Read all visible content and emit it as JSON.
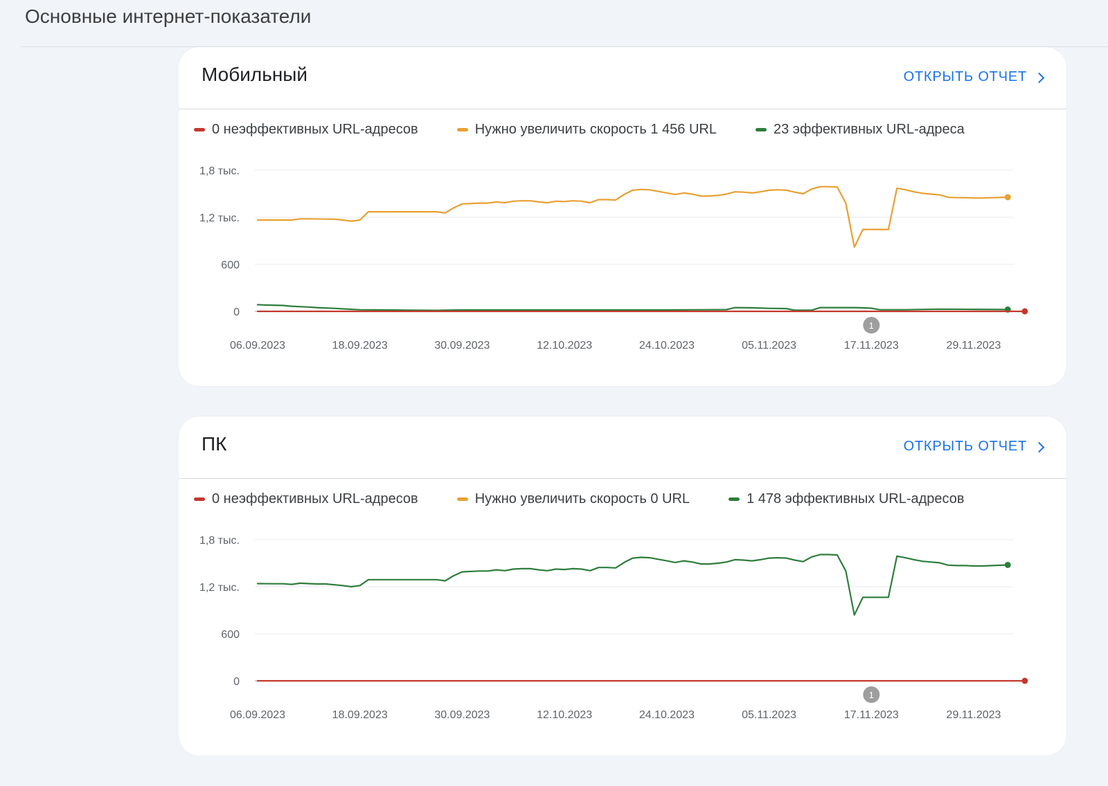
{
  "page": {
    "title": "Основные интернет-показатели"
  },
  "colors": {
    "poor": "#c5372c",
    "needs_improvement": "#e8a032",
    "good": "#2e7d3b",
    "link": "#1a73e8",
    "grid": "#e8eaed",
    "annotation": "#9e9e9e"
  },
  "cards": [
    {
      "title": "Мобильный",
      "open_report": "Открыть отчет",
      "legend": [
        {
          "label": "0 неэффективных URL-адресов",
          "color": "#c5372c"
        },
        {
          "label": "Нужно увеличить скорость 1 456 URL",
          "color": "#e8a032"
        },
        {
          "label": "23 эффективных URL-адреса",
          "color": "#2e7d3b"
        }
      ],
      "annotation_label": "1",
      "chart_data": {
        "type": "line",
        "x_ticks": [
          "06.09.2023",
          "18.09.2023",
          "30.09.2023",
          "12.10.2023",
          "24.10.2023",
          "05.11.2023",
          "17.11.2023",
          "29.11.2023"
        ],
        "y_ticks": [
          "1,8 тыс.",
          "1,2 тыс.",
          "600",
          "0"
        ],
        "y_tick_values": [
          1800,
          1200,
          600,
          0
        ],
        "ylim": [
          0,
          1800
        ],
        "x_range": [
          "06.09.2023",
          "05.12.2023"
        ],
        "annotation": {
          "label": "1",
          "date": "17.11.2023"
        },
        "series": [
          {
            "name": "0 неэффективных URL-адресов",
            "color": "#c5372c",
            "values": [
              [
                0,
                0
              ],
              [
                90,
                0
              ]
            ],
            "end_marker": true
          },
          {
            "name": "Нужно увеличить скорость 1 456 URL",
            "color": "#e8a032",
            "values": [
              [
                0,
                1165
              ],
              [
                2,
                1165
              ],
              [
                4,
                1165
              ],
              [
                5,
                1180
              ],
              [
                6,
                1180
              ],
              [
                9,
                1175
              ],
              [
                10,
                1165
              ],
              [
                11,
                1150
              ],
              [
                12,
                1165
              ],
              [
                13,
                1270
              ],
              [
                16,
                1270
              ],
              [
                21,
                1270
              ],
              [
                22,
                1255
              ],
              [
                23,
                1320
              ],
              [
                24,
                1370
              ],
              [
                26,
                1380
              ],
              [
                27,
                1380
              ],
              [
                28,
                1395
              ],
              [
                29,
                1385
              ],
              [
                30,
                1405
              ],
              [
                31,
                1410
              ],
              [
                32,
                1410
              ],
              [
                33,
                1395
              ],
              [
                34,
                1385
              ],
              [
                35,
                1405
              ],
              [
                36,
                1400
              ],
              [
                37,
                1410
              ],
              [
                38,
                1405
              ],
              [
                39,
                1385
              ],
              [
                40,
                1425
              ],
              [
                41,
                1425
              ],
              [
                42,
                1420
              ],
              [
                43,
                1490
              ],
              [
                44,
                1545
              ],
              [
                45,
                1555
              ],
              [
                46,
                1550
              ],
              [
                47,
                1530
              ],
              [
                48,
                1510
              ],
              [
                49,
                1490
              ],
              [
                50,
                1510
              ],
              [
                51,
                1495
              ],
              [
                52,
                1470
              ],
              [
                53,
                1470
              ],
              [
                54,
                1480
              ],
              [
                55,
                1495
              ],
              [
                56,
                1525
              ],
              [
                57,
                1520
              ],
              [
                58,
                1510
              ],
              [
                59,
                1525
              ],
              [
                60,
                1545
              ],
              [
                61,
                1550
              ],
              [
                62,
                1545
              ],
              [
                63,
                1520
              ],
              [
                64,
                1500
              ],
              [
                65,
                1560
              ],
              [
                66,
                1590
              ],
              [
                67,
                1590
              ],
              [
                68,
                1585
              ],
              [
                69,
                1380
              ],
              [
                70,
                820
              ],
              [
                71,
                1045
              ],
              [
                72,
                1045
              ],
              [
                73,
                1045
              ],
              [
                74,
                1045
              ],
              [
                75,
                1570
              ],
              [
                76,
                1550
              ],
              [
                77,
                1525
              ],
              [
                78,
                1505
              ],
              [
                79,
                1495
              ],
              [
                80,
                1485
              ],
              [
                81,
                1455
              ],
              [
                82,
                1450
              ],
              [
                83,
                1450
              ],
              [
                84,
                1445
              ],
              [
                85,
                1445
              ],
              [
                88,
                1456
              ]
            ],
            "end_marker": true
          },
          {
            "name": "23 эффективных URL-адреса",
            "color": "#2e7d3b",
            "values": [
              [
                0,
                85
              ],
              [
                1,
                80
              ],
              [
                3,
                75
              ],
              [
                4,
                65
              ],
              [
                6,
                55
              ],
              [
                7,
                48
              ],
              [
                9,
                38
              ],
              [
                10,
                32
              ],
              [
                12,
                20
              ],
              [
                15,
                18
              ],
              [
                18,
                15
              ],
              [
                21,
                12
              ],
              [
                24,
                18
              ],
              [
                30,
                18
              ],
              [
                36,
                18
              ],
              [
                42,
                18
              ],
              [
                48,
                18
              ],
              [
                52,
                20
              ],
              [
                55,
                22
              ],
              [
                56,
                48
              ],
              [
                58,
                45
              ],
              [
                60,
                38
              ],
              [
                62,
                35
              ],
              [
                63,
                15
              ],
              [
                65,
                15
              ],
              [
                66,
                48
              ],
              [
                68,
                48
              ],
              [
                70,
                48
              ],
              [
                71,
                45
              ],
              [
                72,
                40
              ],
              [
                73,
                20
              ],
              [
                76,
                20
              ],
              [
                78,
                25
              ],
              [
                80,
                28
              ],
              [
                84,
                26
              ],
              [
                88,
                23
              ]
            ],
            "end_marker": true
          }
        ]
      }
    },
    {
      "title": "ПК",
      "open_report": "Открыть отчет",
      "legend": [
        {
          "label": "0 неэффективных URL-адресов",
          "color": "#c5372c"
        },
        {
          "label": "Нужно увеличить скорость 0 URL",
          "color": "#e8a032"
        },
        {
          "label": "1 478 эффективных URL-адресов",
          "color": "#2e7d3b"
        }
      ],
      "annotation_label": "1",
      "chart_data": {
        "type": "line",
        "x_ticks": [
          "06.09.2023",
          "18.09.2023",
          "30.09.2023",
          "12.10.2023",
          "24.10.2023",
          "05.11.2023",
          "17.11.2023",
          "29.11.2023"
        ],
        "y_ticks": [
          "1,8 тыс.",
          "1,2 тыс.",
          "600",
          "0"
        ],
        "y_tick_values": [
          1800,
          1200,
          600,
          0
        ],
        "ylim": [
          0,
          1800
        ],
        "x_range": [
          "06.09.2023",
          "05.12.2023"
        ],
        "annotation": {
          "label": "1",
          "date": "17.11.2023"
        },
        "series": [
          {
            "name": "0 неэффективных URL-адресов",
            "color": "#c5372c",
            "values": [
              [
                0,
                0
              ],
              [
                90,
                0
              ]
            ],
            "end_marker": true
          },
          {
            "name": "1 478 эффективных URL-адресов",
            "color": "#2e7d3b",
            "values": [
              [
                0,
                1240
              ],
              [
                2,
                1238
              ],
              [
                3,
                1238
              ],
              [
                4,
                1230
              ],
              [
                5,
                1245
              ],
              [
                6,
                1240
              ],
              [
                7,
                1235
              ],
              [
                8,
                1235
              ],
              [
                10,
                1215
              ],
              [
                11,
                1200
              ],
              [
                12,
                1215
              ],
              [
                13,
                1290
              ],
              [
                16,
                1290
              ],
              [
                21,
                1290
              ],
              [
                22,
                1275
              ],
              [
                23,
                1340
              ],
              [
                24,
                1390
              ],
              [
                26,
                1400
              ],
              [
                27,
                1400
              ],
              [
                28,
                1415
              ],
              [
                29,
                1405
              ],
              [
                30,
                1425
              ],
              [
                31,
                1430
              ],
              [
                32,
                1430
              ],
              [
                33,
                1415
              ],
              [
                34,
                1405
              ],
              [
                35,
                1425
              ],
              [
                36,
                1420
              ],
              [
                37,
                1430
              ],
              [
                38,
                1425
              ],
              [
                39,
                1405
              ],
              [
                40,
                1445
              ],
              [
                41,
                1445
              ],
              [
                42,
                1440
              ],
              [
                43,
                1510
              ],
              [
                44,
                1565
              ],
              [
                45,
                1575
              ],
              [
                46,
                1570
              ],
              [
                47,
                1550
              ],
              [
                48,
                1530
              ],
              [
                49,
                1510
              ],
              [
                50,
                1530
              ],
              [
                51,
                1515
              ],
              [
                52,
                1490
              ],
              [
                53,
                1490
              ],
              [
                54,
                1500
              ],
              [
                55,
                1515
              ],
              [
                56,
                1545
              ],
              [
                57,
                1540
              ],
              [
                58,
                1530
              ],
              [
                59,
                1545
              ],
              [
                60,
                1565
              ],
              [
                61,
                1570
              ],
              [
                62,
                1565
              ],
              [
                63,
                1540
              ],
              [
                64,
                1520
              ],
              [
                65,
                1580
              ],
              [
                66,
                1610
              ],
              [
                67,
                1610
              ],
              [
                68,
                1605
              ],
              [
                69,
                1400
              ],
              [
                70,
                840
              ],
              [
                71,
                1065
              ],
              [
                72,
                1065
              ],
              [
                73,
                1065
              ],
              [
                74,
                1065
              ],
              [
                75,
                1590
              ],
              [
                76,
                1570
              ],
              [
                77,
                1545
              ],
              [
                78,
                1525
              ],
              [
                79,
                1515
              ],
              [
                80,
                1505
              ],
              [
                81,
                1475
              ],
              [
                82,
                1470
              ],
              [
                83,
                1470
              ],
              [
                84,
                1465
              ],
              [
                85,
                1465
              ],
              [
                88,
                1478
              ]
            ],
            "end_marker": true
          }
        ]
      }
    }
  ]
}
